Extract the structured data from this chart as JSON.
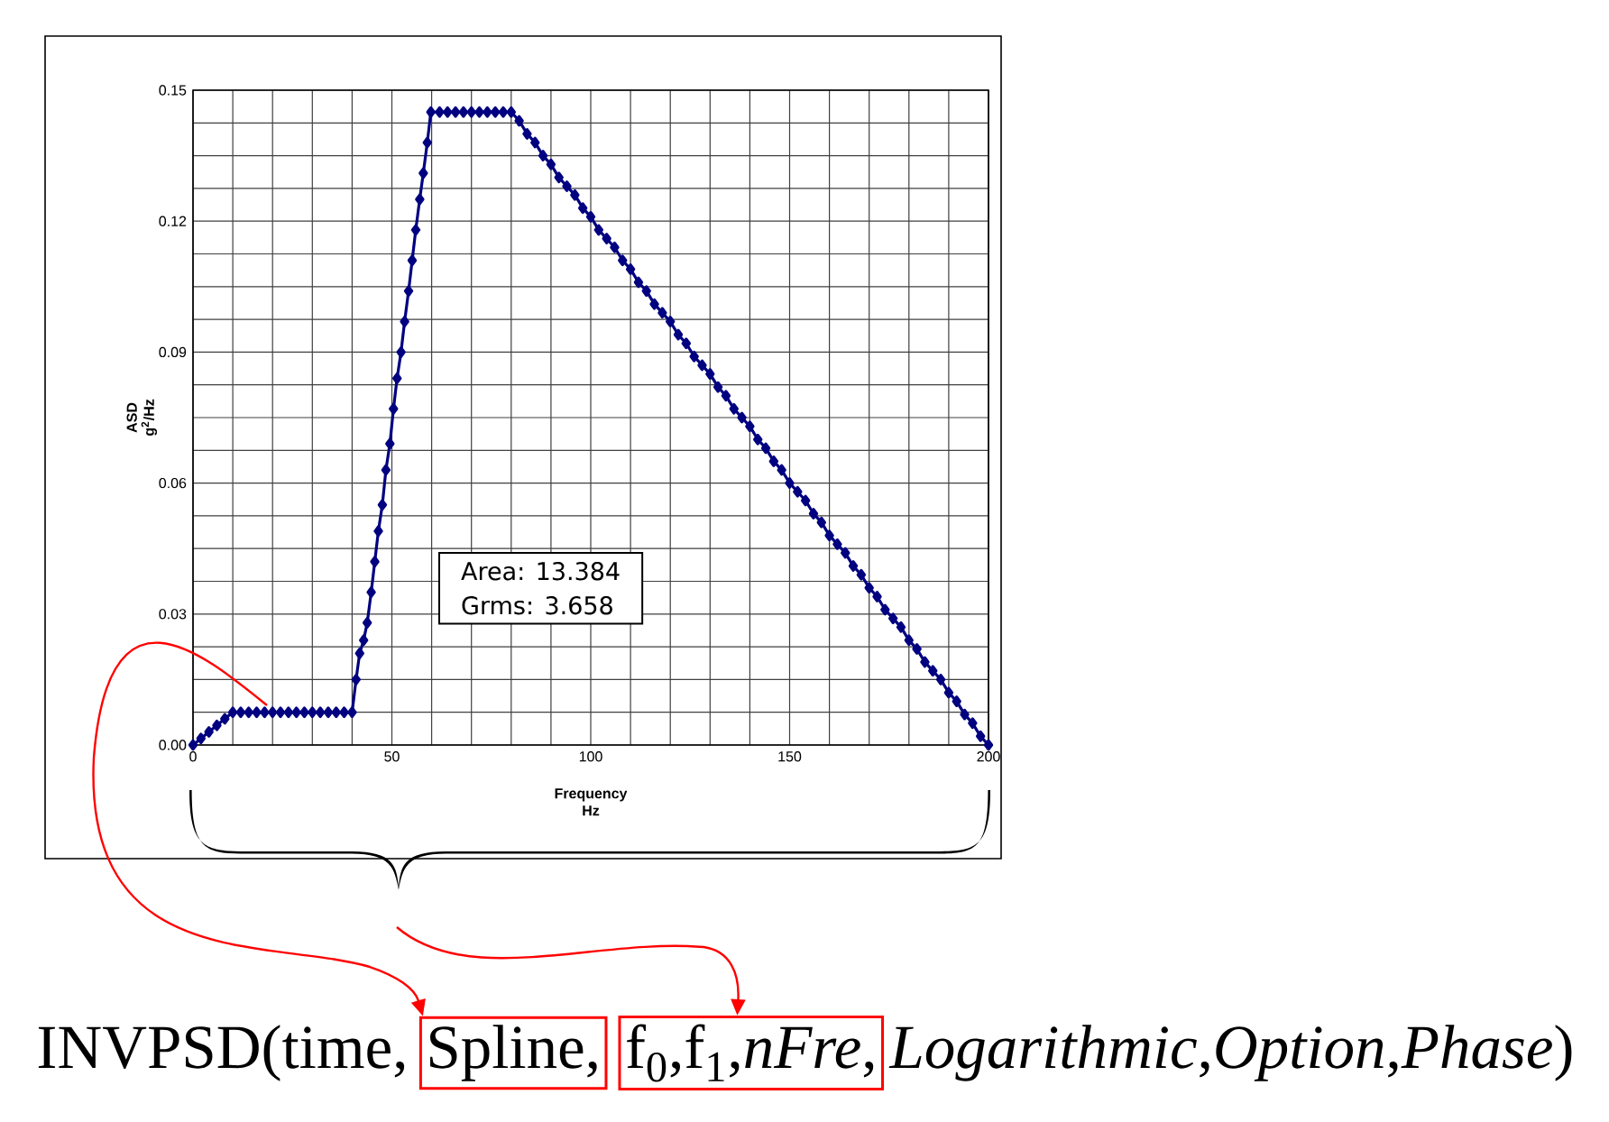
{
  "chart_data": {
    "type": "line",
    "xlabel": "Frequency Hz",
    "ylabel": "ASD g$^{2}$/Hz",
    "xlim": [
      0,
      200
    ],
    "ylim": [
      0,
      0.15
    ],
    "xticks": [
      0,
      50,
      100,
      150,
      200
    ],
    "yticks": [
      {
        "value": 0,
        "label": "0.00"
      },
      {
        "value": 0.03,
        "label": "0.03"
      },
      {
        "value": 0.06,
        "label": "0.06"
      },
      {
        "value": 0.09,
        "label": "0.09"
      },
      {
        "value": 0.12,
        "label": "0.12"
      },
      {
        "value": 0.15,
        "label": "0.15"
      }
    ],
    "grid": true,
    "marker": "diamond",
    "annotations": [
      "Area: 13.384",
      "Grms: 3.658",
      "INVPSD(time,",
      "Spline,",
      "f$_{0}$,f$_{1}$,*nFre*,",
      "*Logarithmic*,*Option*,*Phase*)"
    ],
    "series": [
      {
        "color": "#000080",
        "x": [
          0,
          2,
          4,
          6,
          8,
          10,
          12,
          14,
          16,
          18,
          20,
          22,
          24,
          26,
          28,
          30,
          32,
          34,
          36,
          38,
          40,
          41.0,
          41.9,
          42.9,
          43.8,
          44.8,
          45.7,
          46.6,
          47.6,
          48.5,
          49.5,
          50.4,
          51.3,
          52.3,
          53.2,
          54.2,
          55.1,
          56.0,
          57.0,
          57.9,
          58.9,
          59.8,
          62,
          64,
          66,
          68,
          70,
          72,
          74,
          76,
          78,
          80,
          82,
          84,
          86,
          88,
          90,
          92,
          94,
          96,
          98,
          100,
          102,
          104,
          106,
          108,
          110,
          112,
          114,
          116,
          118,
          120,
          122,
          124,
          126,
          128,
          130,
          132,
          134,
          136,
          138,
          140,
          142,
          144,
          146,
          148,
          150,
          152,
          154,
          156,
          158,
          160,
          162,
          164,
          166,
          168,
          170,
          172,
          174,
          176,
          178,
          180,
          182,
          184,
          186,
          188,
          190,
          192,
          194,
          196,
          198,
          200
        ],
        "values": [
          0,
          0.0015,
          0.003,
          0.0045,
          0.006,
          0.0075,
          0.0075,
          0.0075,
          0.0075,
          0.0075,
          0.0075,
          0.0075,
          0.0075,
          0.0075,
          0.0075,
          0.0075,
          0.0075,
          0.0075,
          0.0075,
          0.0075,
          0.0075,
          0.015,
          0.021,
          0.024,
          0.028,
          0.035,
          0.042,
          0.049,
          0.055,
          0.063,
          0.069,
          0.077,
          0.084,
          0.09,
          0.097,
          0.104,
          0.111,
          0.118,
          0.125,
          0.131,
          0.138,
          0.145,
          0.145,
          0.145,
          0.145,
          0.145,
          0.145,
          0.145,
          0.145,
          0.145,
          0.145,
          0.145,
          0.143,
          0.14,
          0.138,
          0.135,
          0.133,
          0.13,
          0.128,
          0.126,
          0.123,
          0.121,
          0.118,
          0.116,
          0.114,
          0.111,
          0.109,
          0.106,
          0.104,
          0.101,
          0.099,
          0.097,
          0.094,
          0.092,
          0.089,
          0.087,
          0.085,
          0.082,
          0.08,
          0.077,
          0.075,
          0.073,
          0.07,
          0.068,
          0.065,
          0.063,
          0.06,
          0.058,
          0.056,
          0.053,
          0.051,
          0.048,
          0.046,
          0.044,
          0.041,
          0.039,
          0.036,
          0.034,
          0.031,
          0.029,
          0.027,
          0.024,
          0.022,
          0.019,
          0.017,
          0.015,
          0.012,
          0.01,
          0.007,
          0.005,
          0.002,
          0
        ]
      }
    ]
  }
}
